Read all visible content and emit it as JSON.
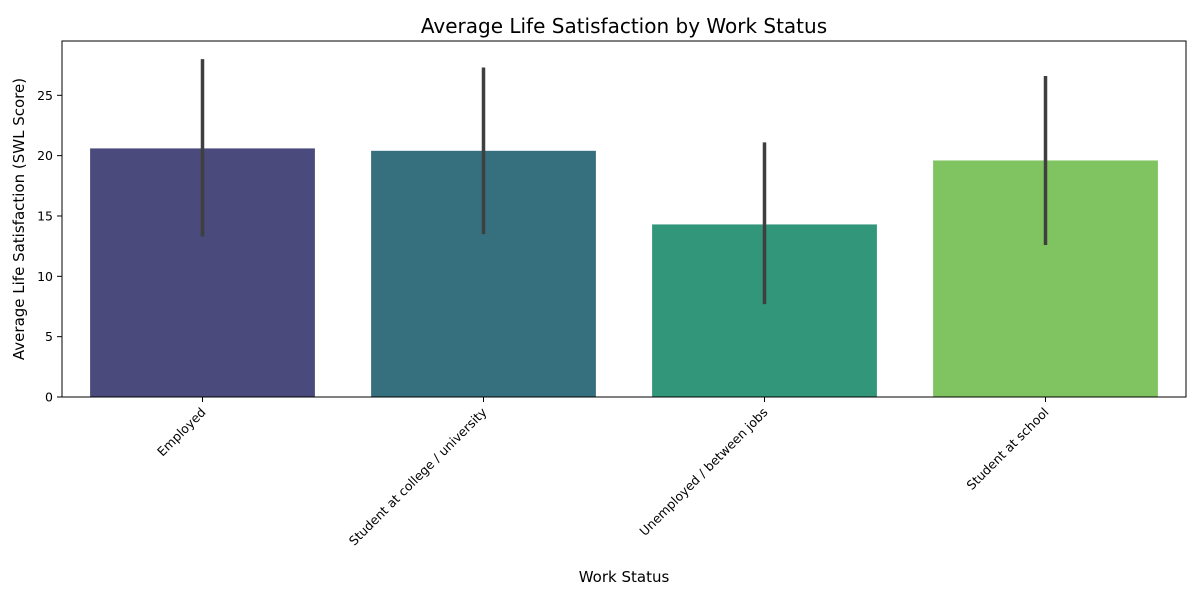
{
  "chart_data": {
    "type": "bar",
    "title": "Average Life Satisfaction by Work Status",
    "xlabel": "Work Status",
    "ylabel": "Average Life Satisfaction (SWL Score)",
    "ylim": [
      0,
      29.5
    ],
    "yticks": [
      0,
      5,
      10,
      15,
      20,
      25
    ],
    "categories": [
      "Employed",
      "Student at college / university",
      "Unemployed / between jobs",
      "Student at school"
    ],
    "values": [
      20.6,
      20.4,
      14.3,
      19.6
    ],
    "error_low": [
      13.3,
      13.5,
      7.7,
      12.6
    ],
    "error_high": [
      28.0,
      27.3,
      21.1,
      26.6
    ],
    "colors": [
      "#4a4a7c",
      "#36707f",
      "#32967a",
      "#80c361"
    ],
    "error_color": "#3f3f3f",
    "grid": false,
    "legend": "none"
  }
}
